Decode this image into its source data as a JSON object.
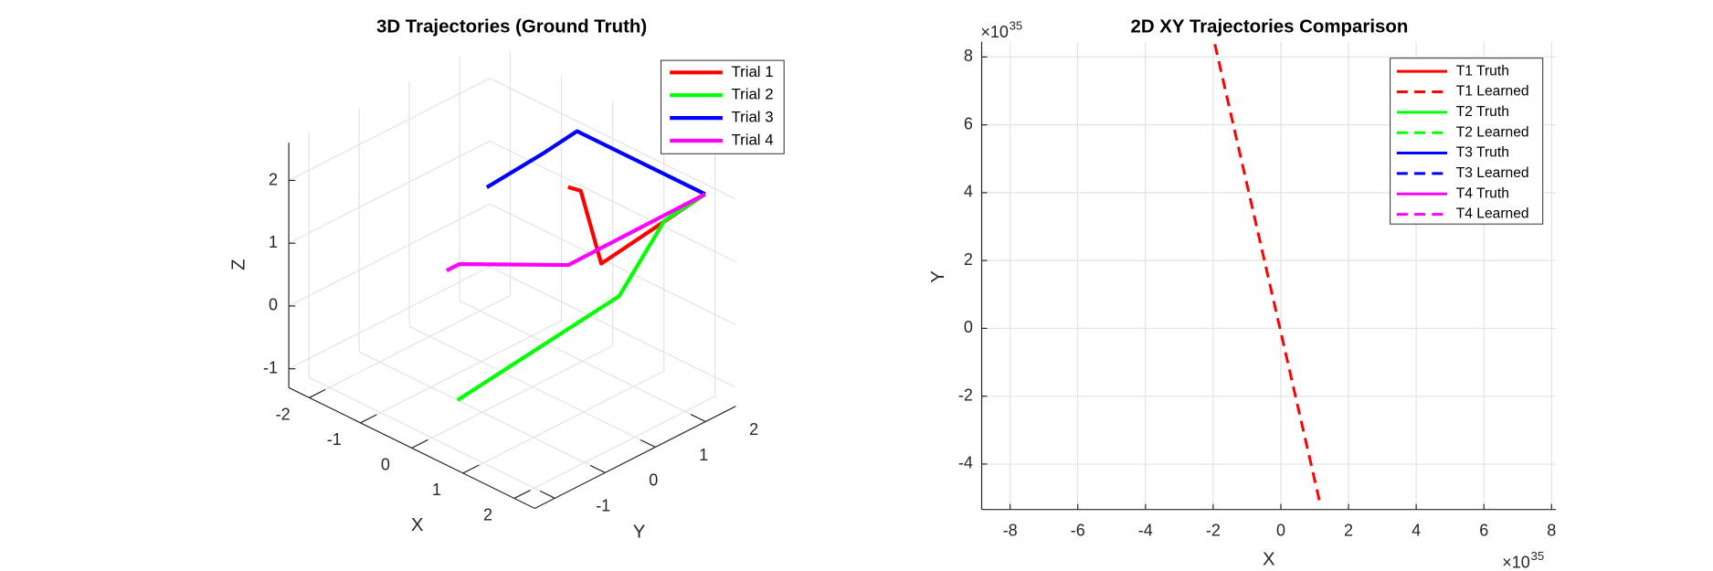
{
  "chart_data": [
    {
      "type": "line3d",
      "title": "3D Trajectories (Ground Truth)",
      "xlabel": "X",
      "ylabel": "Y",
      "zlabel": "Z",
      "xlim": [
        -2.4,
        2.4
      ],
      "ylim": [
        -1.4,
        2.6
      ],
      "zlim": [
        -1.3,
        2.6
      ],
      "xticks": [
        -2,
        -1,
        0,
        1,
        2
      ],
      "yticks": [
        -1,
        0,
        1,
        2
      ],
      "zticks": [
        -1,
        0,
        1,
        2
      ],
      "grid": true,
      "legend": "northeast",
      "series": [
        {
          "name": "Trial 1",
          "color": "#ff0000",
          "x": [
            0.5,
            0.7,
            1.1,
            2
          ],
          "y": [
            1.2,
            1.25,
            1.25,
            2.4
          ],
          "z": [
            2,
            2,
            1,
            2
          ]
        },
        {
          "name": "Trial 2",
          "color": "#00ff00",
          "x": [
            0.5,
            1.3,
            1.5,
            2
          ],
          "y": [
            -1,
            1.4,
            2.1,
            2.4
          ],
          "z": [
            -0.5,
            0.5,
            1.5,
            2
          ]
        },
        {
          "name": "Trial 3",
          "color": "#0000ff",
          "x": [
            -0.3,
            -0.4,
            -0.5,
            2
          ],
          "y": [
            0.4,
            1.6,
            2.4,
            2.4
          ],
          "z": [
            2,
            2,
            2,
            2
          ]
        },
        {
          "name": "Trial 4",
          "color": "#ff00ff",
          "x": [
            -0.3,
            -0.3,
            0.8,
            2
          ],
          "y": [
            -0.4,
            -0.15,
            0.9,
            2.4
          ],
          "z": [
            1,
            1,
            1,
            2
          ]
        }
      ]
    },
    {
      "type": "line",
      "title": "2D XY Trajectories Comparison",
      "xlabel": "X",
      "ylabel": "Y",
      "x_multiplier": {
        "base": "×10",
        "exponent": "35"
      },
      "y_multiplier": {
        "base": "×10",
        "exponent": "35"
      },
      "xlim": [
        -8.84,
        8.13
      ],
      "ylim": [
        -5.34,
        8.45
      ],
      "xticks": [
        -8,
        -6,
        -4,
        -2,
        0,
        2,
        4,
        6,
        8
      ],
      "yticks": [
        -4,
        -2,
        0,
        2,
        4,
        6,
        8
      ],
      "grid": true,
      "legend": "northeast",
      "series": [
        {
          "name": "T1 Truth",
          "color": "#ff0000",
          "line_style": "solid",
          "x": [
            0
          ],
          "y": [
            0
          ]
        },
        {
          "name": "T1 Learned",
          "color": "#ff0000",
          "line_style": "dashed",
          "x": [
            -1.95,
            1.17
          ],
          "y": [
            8.38,
            -5.21
          ]
        },
        {
          "name": "T2 Truth",
          "color": "#00ff00",
          "line_style": "solid",
          "x": [
            0
          ],
          "y": [
            0
          ]
        },
        {
          "name": "T2 Learned",
          "color": "#00ff00",
          "line_style": "dashed",
          "x": [
            0
          ],
          "y": [
            0
          ]
        },
        {
          "name": "T3 Truth",
          "color": "#0000ff",
          "line_style": "solid",
          "x": [
            0
          ],
          "y": [
            0
          ]
        },
        {
          "name": "T3 Learned",
          "color": "#0000ff",
          "line_style": "dashed",
          "x": [
            0
          ],
          "y": [
            0
          ]
        },
        {
          "name": "T4 Truth",
          "color": "#ff00ff",
          "line_style": "solid",
          "x": [
            0
          ],
          "y": [
            0
          ]
        },
        {
          "name": "T4 Learned",
          "color": "#ff00ff",
          "line_style": "dashed",
          "x": [
            0
          ],
          "y": [
            0
          ]
        }
      ]
    }
  ]
}
